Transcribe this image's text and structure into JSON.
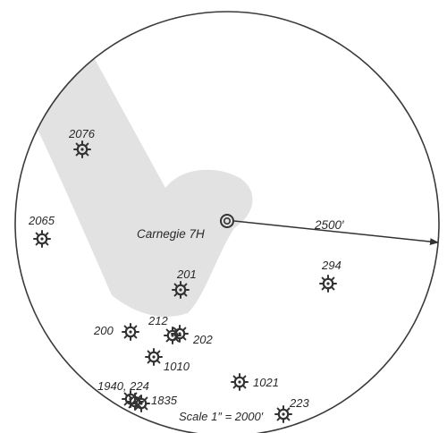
{
  "map": {
    "center_label": "Carnegie 7H",
    "radius_label": "2500′",
    "scale_label": "Scale 1″ = 2000′",
    "colors": {
      "ring": "#3a3a3a",
      "shade": "#e2e2e2",
      "symbol": "#333333",
      "paper": "#ffffff"
    },
    "wells": [
      {
        "id": "w2076",
        "label": "2076"
      },
      {
        "id": "w2065",
        "label": "2065"
      },
      {
        "id": "w201",
        "label": "201"
      },
      {
        "id": "w294",
        "label": "294"
      },
      {
        "id": "w200",
        "label": "200"
      },
      {
        "id": "w212",
        "label": "212"
      },
      {
        "id": "w202",
        "label": "202"
      },
      {
        "id": "w1010",
        "label": "1010"
      },
      {
        "id": "w1021",
        "label": "1021"
      },
      {
        "id": "w1940",
        "label": "1940, 224"
      },
      {
        "id": "w1835",
        "label": "1835"
      },
      {
        "id": "w223",
        "label": "223"
      }
    ],
    "icons": {
      "center": "bullseye-icon",
      "well": "gas-well-icon",
      "arrow": "arrow-right-icon"
    }
  }
}
